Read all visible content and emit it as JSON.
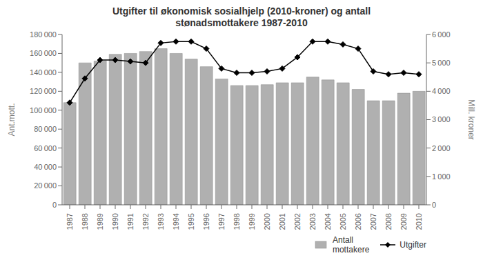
{
  "chart_data": {
    "type": "bar",
    "title": "Utgifter til økonomisk sosialhjelp (2010-kroner) og antall\nstønadsmottakere 1987-2010",
    "y_label": "Ant.mott.",
    "y2_label": "Mill. kroner",
    "categories": [
      "1987",
      "1988",
      "1989",
      "1990",
      "1991",
      "1992",
      "1993",
      "1994",
      "1995",
      "1996",
      "1997",
      "1998",
      "1999",
      "2000",
      "2001",
      "2002",
      "2003",
      "2004",
      "2005",
      "2006",
      "2007",
      "2008",
      "2009",
      "2010"
    ],
    "series": [
      {
        "name": "Antall\nmottakere",
        "type": "bar",
        "color": "#b0b0b0",
        "values": [
          108000,
          150000,
          152000,
          159000,
          160000,
          162000,
          165000,
          160000,
          154000,
          146000,
          133000,
          126000,
          126000,
          127000,
          129000,
          129000,
          135000,
          132000,
          129000,
          122000,
          110000,
          110000,
          118000,
          120000
        ]
      },
      {
        "name": "Utgifter",
        "type": "line",
        "axis": "y2",
        "color": "#000000",
        "marker": "diamond",
        "values": [
          3600,
          4450,
          5100,
          5100,
          5050,
          5000,
          5700,
          5750,
          5750,
          5500,
          4800,
          4650,
          4650,
          4700,
          4800,
          5200,
          5750,
          5750,
          5650,
          5500,
          4700,
          4600,
          4650,
          4600
        ]
      }
    ],
    "ylim": [
      0,
      180000
    ],
    "yticks": [
      0,
      {
        "value": 20000,
        "label": "20 000"
      },
      {
        "value": 40000,
        "label": "40 000"
      },
      {
        "value": 60000,
        "label": "60 000"
      },
      {
        "value": 80000,
        "label": "80 000"
      },
      {
        "value": 100000,
        "label": "100 000"
      },
      {
        "value": 120000,
        "label": "120 000"
      },
      {
        "value": 140000,
        "label": "140 000"
      },
      {
        "value": 160000,
        "label": "160 000"
      },
      {
        "value": 180000,
        "label": "180 000"
      }
    ],
    "y2lim": [
      0,
      6000
    ],
    "y2ticks": [
      0,
      {
        "value": 1000,
        "label": "1 000"
      },
      {
        "value": 2000,
        "label": "2 000"
      },
      {
        "value": 3000,
        "label": "3 000"
      },
      {
        "value": 4000,
        "label": "4 000"
      },
      {
        "value": 5000,
        "label": "5 000"
      },
      {
        "value": 6000,
        "label": "6 000"
      }
    ],
    "grid": false,
    "legend": "lower right"
  }
}
